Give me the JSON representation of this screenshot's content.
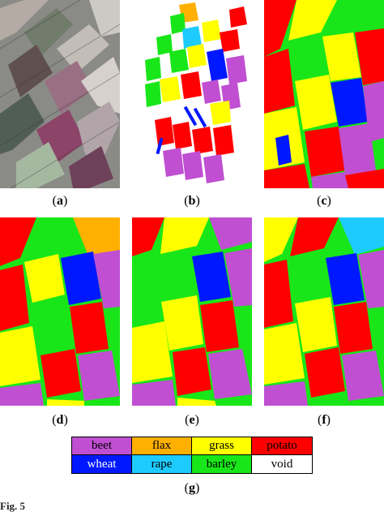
{
  "figure": {
    "panels": [
      {
        "id": "a",
        "label": "a",
        "kind": "sar-image"
      },
      {
        "id": "b",
        "label": "b",
        "kind": "ground-truth"
      },
      {
        "id": "c",
        "label": "c",
        "kind": "classification"
      },
      {
        "id": "d",
        "label": "d",
        "kind": "classification"
      },
      {
        "id": "e",
        "label": "e",
        "kind": "classification"
      },
      {
        "id": "f",
        "label": "f",
        "kind": "classification"
      }
    ],
    "legend": {
      "label": "g",
      "items": [
        {
          "name": "beet",
          "color": "#c04fd2"
        },
        {
          "name": "flax",
          "color": "#ffb000"
        },
        {
          "name": "grass",
          "color": "#ffff00"
        },
        {
          "name": "potato",
          "color": "#ff0000"
        },
        {
          "name": "wheat",
          "color": "#0018ff"
        },
        {
          "name": "rape",
          "color": "#1ecbff"
        },
        {
          "name": "barley",
          "color": "#19e619"
        },
        {
          "name": "void",
          "color": "#ffffff"
        }
      ]
    },
    "caption_fragment": "Fig. 5"
  }
}
